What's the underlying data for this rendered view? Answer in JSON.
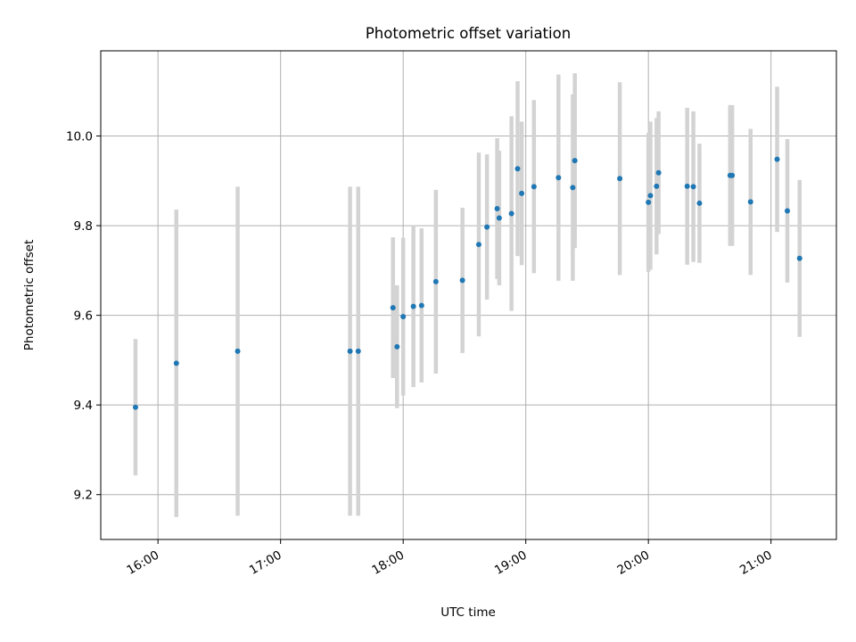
{
  "chart_data": {
    "type": "scatter",
    "title": "Photometric offset variation",
    "xlabel": "UTC time",
    "ylabel": "Photometric offset",
    "x_ticks": [
      "16:00",
      "17:00",
      "18:00",
      "19:00",
      "20:00",
      "21:00"
    ],
    "y_ticks": [
      "9.2",
      "9.4",
      "9.6",
      "9.8",
      "10.0"
    ],
    "xlim": [
      "15:32",
      "21:32"
    ],
    "ylim": [
      9.1,
      10.19
    ],
    "grid": true,
    "marker_color": "#1f77b4",
    "errorbar_color": "#d3d3d3",
    "points": [
      {
        "t": "15:49",
        "y": 9.395,
        "err": 0.152
      },
      {
        "t": "16:09",
        "y": 9.493,
        "err": 0.343
      },
      {
        "t": "16:39",
        "y": 9.52,
        "err": 0.367
      },
      {
        "t": "17:34",
        "y": 9.52,
        "err": 0.367
      },
      {
        "t": "17:38",
        "y": 9.52,
        "err": 0.367
      },
      {
        "t": "17:55",
        "y": 9.617,
        "err": 0.157
      },
      {
        "t": "17:57",
        "y": 9.53,
        "err": 0.137
      },
      {
        "t": "18:00",
        "y": 9.597,
        "err": 0.176
      },
      {
        "t": "18:05",
        "y": 9.62,
        "err": 0.18
      },
      {
        "t": "18:09",
        "y": 9.622,
        "err": 0.172
      },
      {
        "t": "18:16",
        "y": 9.675,
        "err": 0.205
      },
      {
        "t": "18:29",
        "y": 9.678,
        "err": 0.162
      },
      {
        "t": "18:37",
        "y": 9.758,
        "err": 0.205
      },
      {
        "t": "18:41",
        "y": 9.797,
        "err": 0.162
      },
      {
        "t": "18:46",
        "y": 9.838,
        "err": 0.157
      },
      {
        "t": "18:47",
        "y": 9.817,
        "err": 0.15
      },
      {
        "t": "18:53",
        "y": 9.827,
        "err": 0.217
      },
      {
        "t": "18:56",
        "y": 9.927,
        "err": 0.195
      },
      {
        "t": "18:58",
        "y": 9.872,
        "err": 0.16
      },
      {
        "t": "19:04",
        "y": 9.887,
        "err": 0.193
      },
      {
        "t": "19:16",
        "y": 9.907,
        "err": 0.23
      },
      {
        "t": "19:23",
        "y": 9.885,
        "err": 0.208
      },
      {
        "t": "19:24",
        "y": 9.945,
        "err": 0.195
      },
      {
        "t": "19:46",
        "y": 9.905,
        "err": 0.215
      },
      {
        "t": "20:00",
        "y": 9.852,
        "err": 0.155
      },
      {
        "t": "20:01",
        "y": 9.867,
        "err": 0.165
      },
      {
        "t": "20:04",
        "y": 9.888,
        "err": 0.152
      },
      {
        "t": "20:05",
        "y": 9.918,
        "err": 0.137
      },
      {
        "t": "20:19",
        "y": 9.888,
        "err": 0.175
      },
      {
        "t": "20:22",
        "y": 9.887,
        "err": 0.168
      },
      {
        "t": "20:25",
        "y": 9.85,
        "err": 0.133
      },
      {
        "t": "20:40",
        "y": 9.912,
        "err": 0.157
      },
      {
        "t": "20:41",
        "y": 9.912,
        "err": 0.157
      },
      {
        "t": "20:50",
        "y": 9.853,
        "err": 0.163
      },
      {
        "t": "21:03",
        "y": 9.948,
        "err": 0.162
      },
      {
        "t": "21:08",
        "y": 9.833,
        "err": 0.16
      },
      {
        "t": "21:14",
        "y": 9.727,
        "err": 0.175
      }
    ]
  }
}
